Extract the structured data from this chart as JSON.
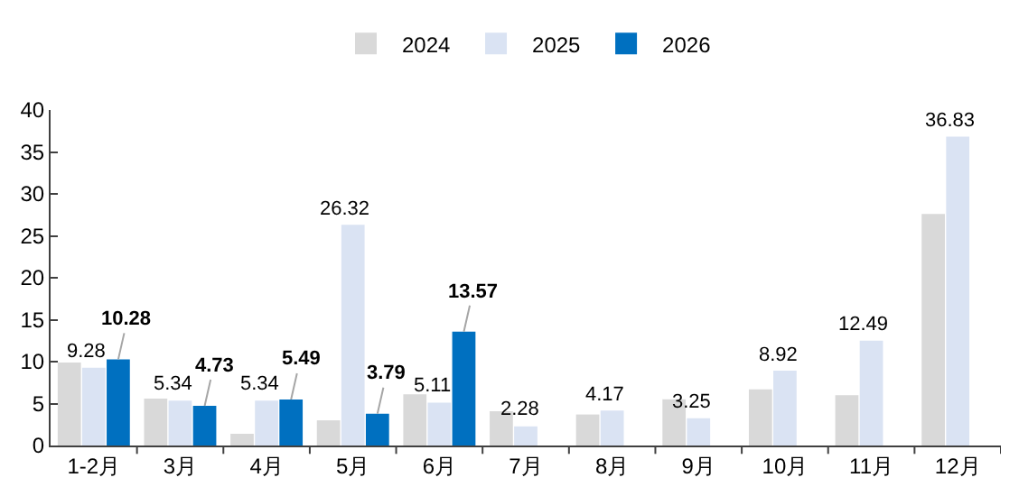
{
  "chart_data": {
    "type": "bar",
    "categories": [
      "1-2月",
      "3月",
      "4月",
      "5月",
      "6月",
      "7月",
      "8月",
      "9月",
      "10月",
      "11月",
      "12月"
    ],
    "series": [
      {
        "name": "2024",
        "color": "#d9d9d9",
        "values": [
          9.9,
          5.6,
          1.4,
          3.0,
          6.1,
          4.1,
          3.7,
          5.5,
          6.7,
          6.0,
          27.6
        ]
      },
      {
        "name": "2025",
        "color": "#dae3f3",
        "values": [
          9.28,
          5.34,
          5.34,
          26.32,
          5.11,
          2.28,
          4.17,
          3.25,
          8.92,
          12.49,
          36.83
        ],
        "value_labels": [
          "9.28",
          "5.34",
          "5.34",
          "26.32",
          "5.11",
          "2.28",
          "4.17",
          "3.25",
          "8.92",
          "12.49",
          "36.83"
        ]
      },
      {
        "name": "2026",
        "color": "#0070c0",
        "values": [
          10.28,
          4.73,
          5.49,
          3.79,
          13.57,
          null,
          null,
          null,
          null,
          null,
          null
        ],
        "value_labels": [
          "10.28",
          "4.73",
          "5.49",
          "3.79",
          "13.57",
          null,
          null,
          null,
          null,
          null,
          null
        ]
      }
    ],
    "ylim": [
      0,
      40
    ],
    "yticks": [
      0,
      5,
      10,
      15,
      20,
      25,
      30,
      35,
      40
    ],
    "grid": false,
    "legend": "top"
  }
}
